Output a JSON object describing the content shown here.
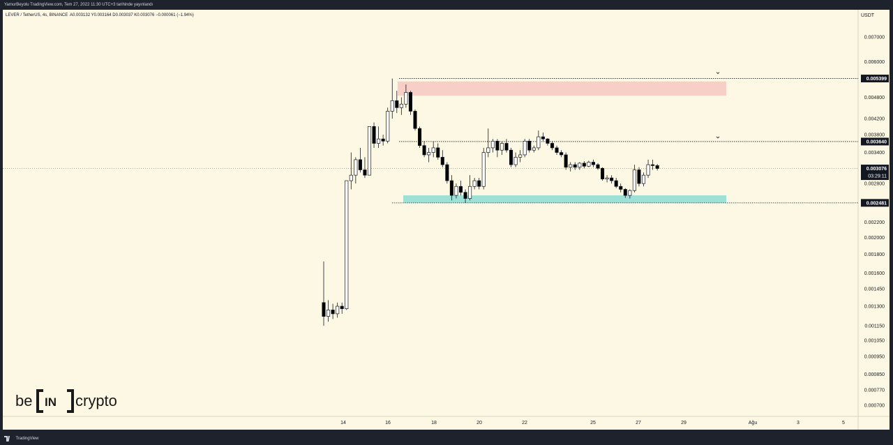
{
  "header": {
    "publish_note": "YamurBeyolu TradingView.com, Tem 27, 2022 11:30 UTC+3 tarihinde yayınlandı",
    "symbol_info": "LEVER / TetherUS, 4s, BINANCE",
    "ohlc_text": "A0.003132  Y0.003164  D0.003037  K0.003076  −0.000061 (−1.94%)"
  },
  "footer": {
    "logo_text": "TradingView"
  },
  "watermark": {
    "left": "be",
    "mid": "IN",
    "right": "crypto"
  },
  "colors": {
    "background": "#fdf8e3",
    "resistance_zone": "#f8cfc7",
    "support_zone": "#9de0d6",
    "candle_bull_fill": "#ffffff",
    "candle_bear_fill": "#000000"
  },
  "chart_data": {
    "type": "candlestick",
    "currency_label": "USDT",
    "y_scale": "log",
    "y_ticks": [
      "0.007000",
      "0.006000",
      "0.004800",
      "0.004200",
      "0.003800",
      "0.003400",
      "0.002800",
      "0.002200",
      "0.002000",
      "0.001800",
      "0.001600",
      "0.001450",
      "0.001300",
      "0.001150",
      "0.001050",
      "0.000950",
      "0.000850",
      "0.000770",
      "0.000700"
    ],
    "x_ticks": [
      "14",
      "16",
      "18",
      "20",
      "22",
      "25",
      "27",
      "29",
      "Ağu",
      "3",
      "5"
    ],
    "price_labels": [
      {
        "value": "0.005399",
        "type": "level"
      },
      {
        "value": "0.003640",
        "type": "level"
      },
      {
        "value": "0.003076",
        "type": "last",
        "countdown": "03:29:11"
      },
      {
        "value": "0.002481",
        "type": "level"
      }
    ],
    "zones": [
      {
        "name": "resistance",
        "from": 0.00485,
        "to": 0.0053,
        "x_start": "16",
        "x_end": "Ağu"
      },
      {
        "name": "support",
        "from": 0.002481,
        "to": 0.0026,
        "x_start": "16",
        "x_end": "Ağu"
      }
    ],
    "candles": [
      {
        "o": 0.00133,
        "h": 0.00172,
        "l": 0.00115,
        "c": 0.00122
      },
      {
        "o": 0.00122,
        "h": 0.00135,
        "l": 0.00118,
        "c": 0.00127
      },
      {
        "o": 0.00127,
        "h": 0.00132,
        "l": 0.0012,
        "c": 0.00124
      },
      {
        "o": 0.00124,
        "h": 0.00133,
        "l": 0.00121,
        "c": 0.0013
      },
      {
        "o": 0.0013,
        "h": 0.00133,
        "l": 0.00124,
        "c": 0.00128
      },
      {
        "o": 0.00128,
        "h": 0.00285,
        "l": 0.00127,
        "c": 0.00285
      },
      {
        "o": 0.00285,
        "h": 0.0034,
        "l": 0.0027,
        "c": 0.00295
      },
      {
        "o": 0.00295,
        "h": 0.0033,
        "l": 0.0028,
        "c": 0.00325
      },
      {
        "o": 0.00325,
        "h": 0.0035,
        "l": 0.003,
        "c": 0.00305
      },
      {
        "o": 0.00305,
        "h": 0.0033,
        "l": 0.0029,
        "c": 0.00295
      },
      {
        "o": 0.00295,
        "h": 0.004,
        "l": 0.00295,
        "c": 0.004
      },
      {
        "o": 0.004,
        "h": 0.0041,
        "l": 0.0035,
        "c": 0.0036
      },
      {
        "o": 0.0036,
        "h": 0.004,
        "l": 0.0035,
        "c": 0.0037
      },
      {
        "o": 0.0037,
        "h": 0.0038,
        "l": 0.00355,
        "c": 0.00365
      },
      {
        "o": 0.00365,
        "h": 0.0045,
        "l": 0.0036,
        "c": 0.0044
      },
      {
        "o": 0.0044,
        "h": 0.005399,
        "l": 0.0042,
        "c": 0.0047
      },
      {
        "o": 0.0047,
        "h": 0.005,
        "l": 0.00435,
        "c": 0.0045
      },
      {
        "o": 0.0045,
        "h": 0.0048,
        "l": 0.0043,
        "c": 0.0046
      },
      {
        "o": 0.0046,
        "h": 0.0052,
        "l": 0.0045,
        "c": 0.00495
      },
      {
        "o": 0.00495,
        "h": 0.005,
        "l": 0.0043,
        "c": 0.0044
      },
      {
        "o": 0.0044,
        "h": 0.00445,
        "l": 0.0039,
        "c": 0.00395
      },
      {
        "o": 0.00395,
        "h": 0.004,
        "l": 0.0035,
        "c": 0.00355
      },
      {
        "o": 0.00355,
        "h": 0.00365,
        "l": 0.0033,
        "c": 0.00335
      },
      {
        "o": 0.00335,
        "h": 0.0035,
        "l": 0.0032,
        "c": 0.0034
      },
      {
        "o": 0.0034,
        "h": 0.00365,
        "l": 0.0033,
        "c": 0.0035
      },
      {
        "o": 0.0035,
        "h": 0.0036,
        "l": 0.00325,
        "c": 0.0033
      },
      {
        "o": 0.0033,
        "h": 0.00345,
        "l": 0.0031,
        "c": 0.00315
      },
      {
        "o": 0.00315,
        "h": 0.0032,
        "l": 0.0028,
        "c": 0.00285
      },
      {
        "o": 0.00285,
        "h": 0.00295,
        "l": 0.00252,
        "c": 0.0026
      },
      {
        "o": 0.0026,
        "h": 0.0028,
        "l": 0.00255,
        "c": 0.00275
      },
      {
        "o": 0.00275,
        "h": 0.00285,
        "l": 0.0026,
        "c": 0.00265
      },
      {
        "o": 0.00265,
        "h": 0.0027,
        "l": 0.002481,
        "c": 0.00255
      },
      {
        "o": 0.00255,
        "h": 0.00295,
        "l": 0.00252,
        "c": 0.00275
      },
      {
        "o": 0.00275,
        "h": 0.0029,
        "l": 0.0027,
        "c": 0.00285
      },
      {
        "o": 0.00285,
        "h": 0.0029,
        "l": 0.0027,
        "c": 0.00275
      },
      {
        "o": 0.00275,
        "h": 0.0035,
        "l": 0.0027,
        "c": 0.0034
      },
      {
        "o": 0.0034,
        "h": 0.00395,
        "l": 0.0033,
        "c": 0.0035
      },
      {
        "o": 0.0035,
        "h": 0.0037,
        "l": 0.0034,
        "c": 0.00365
      },
      {
        "o": 0.00365,
        "h": 0.0037,
        "l": 0.0033,
        "c": 0.00345
      },
      {
        "o": 0.00345,
        "h": 0.00365,
        "l": 0.00335,
        "c": 0.0036
      },
      {
        "o": 0.0036,
        "h": 0.0037,
        "l": 0.0034,
        "c": 0.00345
      },
      {
        "o": 0.00345,
        "h": 0.0035,
        "l": 0.0031,
        "c": 0.00315
      },
      {
        "o": 0.00315,
        "h": 0.0034,
        "l": 0.0031,
        "c": 0.0033
      },
      {
        "o": 0.0033,
        "h": 0.00345,
        "l": 0.0032,
        "c": 0.00335
      },
      {
        "o": 0.00335,
        "h": 0.0037,
        "l": 0.0033,
        "c": 0.00365
      },
      {
        "o": 0.00365,
        "h": 0.0037,
        "l": 0.0034,
        "c": 0.00345
      },
      {
        "o": 0.00345,
        "h": 0.00355,
        "l": 0.0034,
        "c": 0.0035
      },
      {
        "o": 0.0035,
        "h": 0.0039,
        "l": 0.00345,
        "c": 0.00375
      },
      {
        "o": 0.00375,
        "h": 0.00385,
        "l": 0.00365,
        "c": 0.0037
      },
      {
        "o": 0.0037,
        "h": 0.00372,
        "l": 0.00355,
        "c": 0.0036
      },
      {
        "o": 0.0036,
        "h": 0.00365,
        "l": 0.00345,
        "c": 0.0035
      },
      {
        "o": 0.0035,
        "h": 0.00355,
        "l": 0.00335,
        "c": 0.0034
      },
      {
        "o": 0.0034,
        "h": 0.00345,
        "l": 0.0033,
        "c": 0.00335
      },
      {
        "o": 0.00335,
        "h": 0.0034,
        "l": 0.00305,
        "c": 0.0031
      },
      {
        "o": 0.0031,
        "h": 0.0032,
        "l": 0.00302,
        "c": 0.00315
      },
      {
        "o": 0.00315,
        "h": 0.0032,
        "l": 0.00305,
        "c": 0.0031
      },
      {
        "o": 0.0031,
        "h": 0.0032,
        "l": 0.00305,
        "c": 0.00318
      },
      {
        "o": 0.00318,
        "h": 0.00322,
        "l": 0.00308,
        "c": 0.00312
      },
      {
        "o": 0.00312,
        "h": 0.00323,
        "l": 0.0031,
        "c": 0.0032
      },
      {
        "o": 0.0032,
        "h": 0.00325,
        "l": 0.0031,
        "c": 0.00315
      },
      {
        "o": 0.00315,
        "h": 0.00318,
        "l": 0.00305,
        "c": 0.00308
      },
      {
        "o": 0.00308,
        "h": 0.0031,
        "l": 0.00285,
        "c": 0.00288
      },
      {
        "o": 0.00288,
        "h": 0.00295,
        "l": 0.00282,
        "c": 0.0029
      },
      {
        "o": 0.0029,
        "h": 0.00295,
        "l": 0.0028,
        "c": 0.00285
      },
      {
        "o": 0.00285,
        "h": 0.0029,
        "l": 0.00272,
        "c": 0.00275
      },
      {
        "o": 0.00275,
        "h": 0.0028,
        "l": 0.00265,
        "c": 0.0027
      },
      {
        "o": 0.0027,
        "h": 0.00272,
        "l": 0.00256,
        "c": 0.0026
      },
      {
        "o": 0.0026,
        "h": 0.0027,
        "l": 0.00255,
        "c": 0.00268
      },
      {
        "o": 0.00268,
        "h": 0.00315,
        "l": 0.00265,
        "c": 0.00305
      },
      {
        "o": 0.00305,
        "h": 0.0031,
        "l": 0.00275,
        "c": 0.0028
      },
      {
        "o": 0.0028,
        "h": 0.003,
        "l": 0.00275,
        "c": 0.00295
      },
      {
        "o": 0.00295,
        "h": 0.00325,
        "l": 0.0029,
        "c": 0.00315
      },
      {
        "o": 0.00315,
        "h": 0.00325,
        "l": 0.00305,
        "c": 0.003132
      },
      {
        "o": 0.003132,
        "h": 0.003164,
        "l": 0.003037,
        "c": 0.003076
      }
    ]
  }
}
